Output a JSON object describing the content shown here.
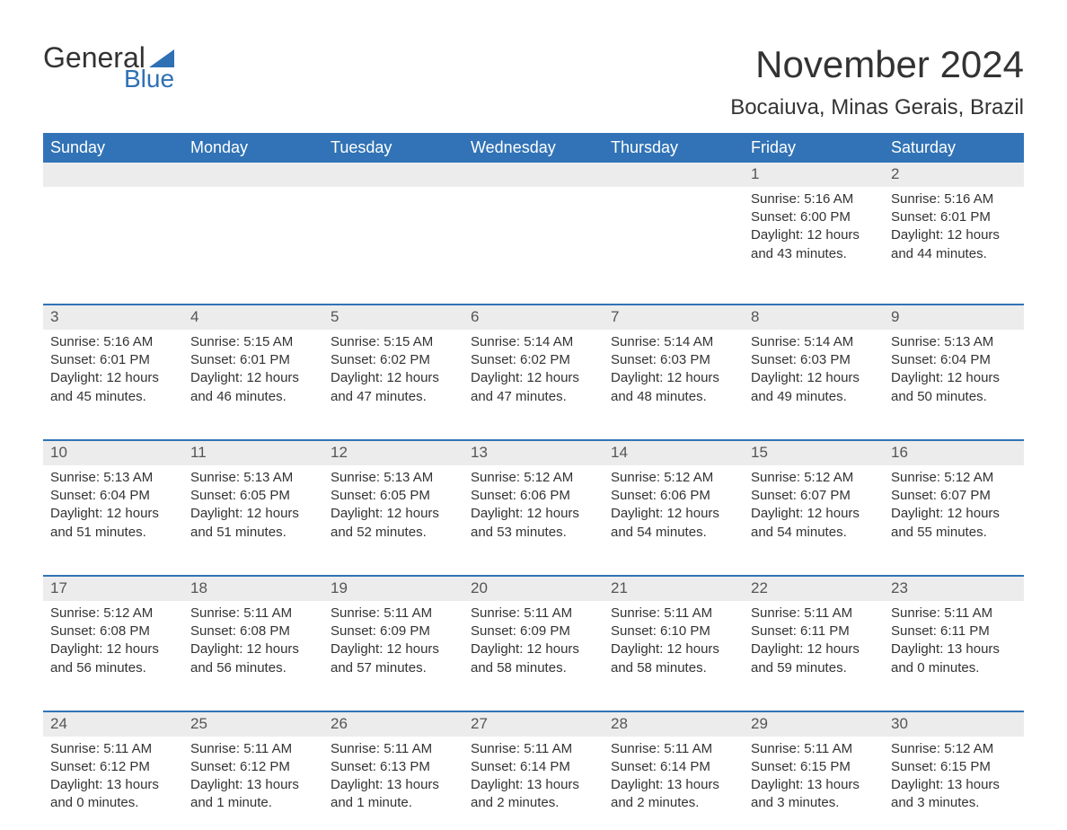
{
  "logo": {
    "word1": "General",
    "word2": "Blue"
  },
  "title": "November 2024",
  "subtitle": "Bocaiuva, Minas Gerais, Brazil",
  "colors": {
    "header_bg": "#3173b6",
    "header_text": "#ffffff",
    "daynum_bg": "#ececec",
    "text": "#333333",
    "logo_blue": "#2f70b5"
  },
  "columns": [
    "Sunday",
    "Monday",
    "Tuesday",
    "Wednesday",
    "Thursday",
    "Friday",
    "Saturday"
  ],
  "weeks": [
    [
      null,
      null,
      null,
      null,
      null,
      {
        "n": "1",
        "sunrise": "Sunrise: 5:16 AM",
        "sunset": "Sunset: 6:00 PM",
        "d1": "Daylight: 12 hours",
        "d2": "and 43 minutes."
      },
      {
        "n": "2",
        "sunrise": "Sunrise: 5:16 AM",
        "sunset": "Sunset: 6:01 PM",
        "d1": "Daylight: 12 hours",
        "d2": "and 44 minutes."
      }
    ],
    [
      {
        "n": "3",
        "sunrise": "Sunrise: 5:16 AM",
        "sunset": "Sunset: 6:01 PM",
        "d1": "Daylight: 12 hours",
        "d2": "and 45 minutes."
      },
      {
        "n": "4",
        "sunrise": "Sunrise: 5:15 AM",
        "sunset": "Sunset: 6:01 PM",
        "d1": "Daylight: 12 hours",
        "d2": "and 46 minutes."
      },
      {
        "n": "5",
        "sunrise": "Sunrise: 5:15 AM",
        "sunset": "Sunset: 6:02 PM",
        "d1": "Daylight: 12 hours",
        "d2": "and 47 minutes."
      },
      {
        "n": "6",
        "sunrise": "Sunrise: 5:14 AM",
        "sunset": "Sunset: 6:02 PM",
        "d1": "Daylight: 12 hours",
        "d2": "and 47 minutes."
      },
      {
        "n": "7",
        "sunrise": "Sunrise: 5:14 AM",
        "sunset": "Sunset: 6:03 PM",
        "d1": "Daylight: 12 hours",
        "d2": "and 48 minutes."
      },
      {
        "n": "8",
        "sunrise": "Sunrise: 5:14 AM",
        "sunset": "Sunset: 6:03 PM",
        "d1": "Daylight: 12 hours",
        "d2": "and 49 minutes."
      },
      {
        "n": "9",
        "sunrise": "Sunrise: 5:13 AM",
        "sunset": "Sunset: 6:04 PM",
        "d1": "Daylight: 12 hours",
        "d2": "and 50 minutes."
      }
    ],
    [
      {
        "n": "10",
        "sunrise": "Sunrise: 5:13 AM",
        "sunset": "Sunset: 6:04 PM",
        "d1": "Daylight: 12 hours",
        "d2": "and 51 minutes."
      },
      {
        "n": "11",
        "sunrise": "Sunrise: 5:13 AM",
        "sunset": "Sunset: 6:05 PM",
        "d1": "Daylight: 12 hours",
        "d2": "and 51 minutes."
      },
      {
        "n": "12",
        "sunrise": "Sunrise: 5:13 AM",
        "sunset": "Sunset: 6:05 PM",
        "d1": "Daylight: 12 hours",
        "d2": "and 52 minutes."
      },
      {
        "n": "13",
        "sunrise": "Sunrise: 5:12 AM",
        "sunset": "Sunset: 6:06 PM",
        "d1": "Daylight: 12 hours",
        "d2": "and 53 minutes."
      },
      {
        "n": "14",
        "sunrise": "Sunrise: 5:12 AM",
        "sunset": "Sunset: 6:06 PM",
        "d1": "Daylight: 12 hours",
        "d2": "and 54 minutes."
      },
      {
        "n": "15",
        "sunrise": "Sunrise: 5:12 AM",
        "sunset": "Sunset: 6:07 PM",
        "d1": "Daylight: 12 hours",
        "d2": "and 54 minutes."
      },
      {
        "n": "16",
        "sunrise": "Sunrise: 5:12 AM",
        "sunset": "Sunset: 6:07 PM",
        "d1": "Daylight: 12 hours",
        "d2": "and 55 minutes."
      }
    ],
    [
      {
        "n": "17",
        "sunrise": "Sunrise: 5:12 AM",
        "sunset": "Sunset: 6:08 PM",
        "d1": "Daylight: 12 hours",
        "d2": "and 56 minutes."
      },
      {
        "n": "18",
        "sunrise": "Sunrise: 5:11 AM",
        "sunset": "Sunset: 6:08 PM",
        "d1": "Daylight: 12 hours",
        "d2": "and 56 minutes."
      },
      {
        "n": "19",
        "sunrise": "Sunrise: 5:11 AM",
        "sunset": "Sunset: 6:09 PM",
        "d1": "Daylight: 12 hours",
        "d2": "and 57 minutes."
      },
      {
        "n": "20",
        "sunrise": "Sunrise: 5:11 AM",
        "sunset": "Sunset: 6:09 PM",
        "d1": "Daylight: 12 hours",
        "d2": "and 58 minutes."
      },
      {
        "n": "21",
        "sunrise": "Sunrise: 5:11 AM",
        "sunset": "Sunset: 6:10 PM",
        "d1": "Daylight: 12 hours",
        "d2": "and 58 minutes."
      },
      {
        "n": "22",
        "sunrise": "Sunrise: 5:11 AM",
        "sunset": "Sunset: 6:11 PM",
        "d1": "Daylight: 12 hours",
        "d2": "and 59 minutes."
      },
      {
        "n": "23",
        "sunrise": "Sunrise: 5:11 AM",
        "sunset": "Sunset: 6:11 PM",
        "d1": "Daylight: 13 hours",
        "d2": "and 0 minutes."
      }
    ],
    [
      {
        "n": "24",
        "sunrise": "Sunrise: 5:11 AM",
        "sunset": "Sunset: 6:12 PM",
        "d1": "Daylight: 13 hours",
        "d2": "and 0 minutes."
      },
      {
        "n": "25",
        "sunrise": "Sunrise: 5:11 AM",
        "sunset": "Sunset: 6:12 PM",
        "d1": "Daylight: 13 hours",
        "d2": "and 1 minute."
      },
      {
        "n": "26",
        "sunrise": "Sunrise: 5:11 AM",
        "sunset": "Sunset: 6:13 PM",
        "d1": "Daylight: 13 hours",
        "d2": "and 1 minute."
      },
      {
        "n": "27",
        "sunrise": "Sunrise: 5:11 AM",
        "sunset": "Sunset: 6:14 PM",
        "d1": "Daylight: 13 hours",
        "d2": "and 2 minutes."
      },
      {
        "n": "28",
        "sunrise": "Sunrise: 5:11 AM",
        "sunset": "Sunset: 6:14 PM",
        "d1": "Daylight: 13 hours",
        "d2": "and 2 minutes."
      },
      {
        "n": "29",
        "sunrise": "Sunrise: 5:11 AM",
        "sunset": "Sunset: 6:15 PM",
        "d1": "Daylight: 13 hours",
        "d2": "and 3 minutes."
      },
      {
        "n": "30",
        "sunrise": "Sunrise: 5:12 AM",
        "sunset": "Sunset: 6:15 PM",
        "d1": "Daylight: 13 hours",
        "d2": "and 3 minutes."
      }
    ]
  ]
}
